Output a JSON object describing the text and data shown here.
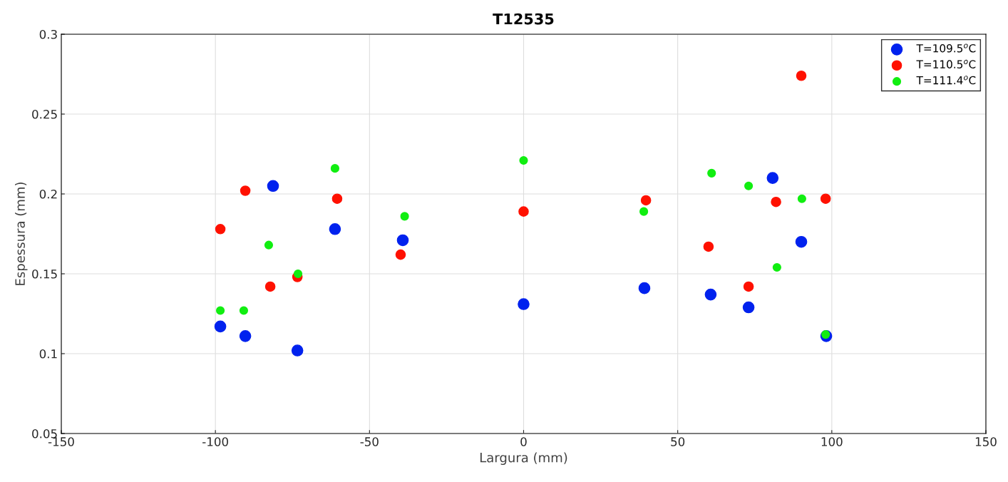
{
  "chart_data": {
    "type": "scatter",
    "title": "T12535",
    "xlabel": "Largura (mm)",
    "ylabel": "Espessura (mm)",
    "xlim": [
      -150,
      150
    ],
    "xticks": [
      -150,
      -100,
      -50,
      0,
      50,
      100,
      150
    ],
    "ylim": [
      0.05,
      0.3
    ],
    "yticks": [
      0.05,
      0.1,
      0.15,
      0.2,
      0.25,
      0.3
    ],
    "grid": true,
    "legend": "top right",
    "marker": "circle",
    "series": [
      {
        "name": "T=109.5$^{o}$C",
        "color": "#0022ee",
        "x": [
          -98.4,
          -90.3,
          -81.3,
          -73.4,
          -61.2,
          -39.2,
          0,
          39.2,
          60.7,
          73.0,
          80.8,
          90.1,
          98.2
        ],
        "values": [
          0.117,
          0.111,
          0.205,
          0.102,
          0.178,
          0.171,
          0.131,
          0.141,
          0.137,
          0.129,
          0.21,
          0.17,
          0.111
        ]
      },
      {
        "name": "T=110.5$^{o}$C",
        "color": "#ff1100",
        "x": [
          -98.4,
          -90.3,
          -82.2,
          -73.4,
          -60.5,
          -39.9,
          0,
          39.7,
          60.0,
          73.0,
          81.9,
          90.1,
          98.0
        ],
        "values": [
          0.178,
          0.202,
          0.142,
          0.148,
          0.197,
          0.162,
          0.189,
          0.196,
          0.167,
          0.142,
          0.195,
          0.274,
          0.197
        ]
      },
      {
        "name": "T=111.4$^{o}$C",
        "color": "#11ee11",
        "x": [
          -98.4,
          -90.8,
          -82.7,
          -73.2,
          -61.2,
          -38.6,
          0,
          39.0,
          61.0,
          73.0,
          82.2,
          90.3,
          98.0
        ],
        "values": [
          0.127,
          0.127,
          0.168,
          0.15,
          0.216,
          0.186,
          0.221,
          0.189,
          0.213,
          0.205,
          0.154,
          0.197,
          0.112
        ]
      }
    ]
  }
}
